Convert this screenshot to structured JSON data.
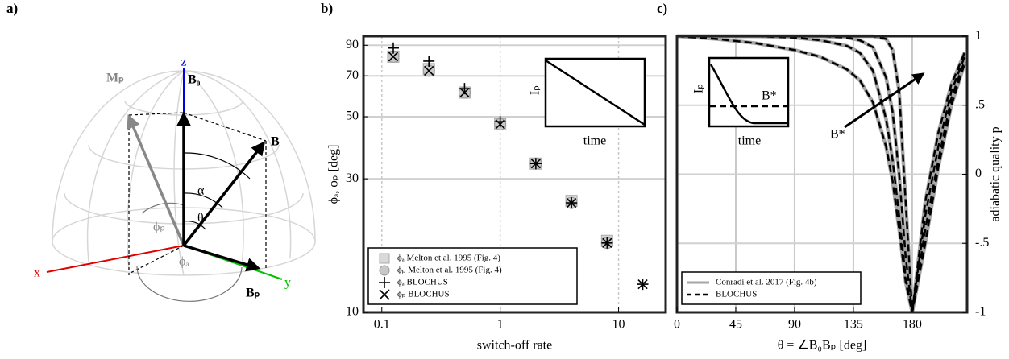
{
  "panel_labels": [
    "a)",
    "b)",
    "c)"
  ],
  "diagram": {
    "labels": {
      "z": "z",
      "x": "x",
      "y": "y",
      "B0": "B₀",
      "Mp": "Mₚ",
      "B": "B",
      "Bp": "Bₚ",
      "alpha": "α",
      "theta": "θ",
      "phip": "ϕₚ",
      "phia": "ϕₐ"
    }
  },
  "chart_data": [
    {
      "type": "scatter",
      "xlabel": "switch-off rate",
      "ylabel": "ϕₐ, ϕₚ [deg]",
      "xlog": true,
      "ylog": true,
      "grid": true,
      "legend": "lower left",
      "xlim": [
        0.07,
        25
      ],
      "xticks": [
        0.1,
        1,
        10
      ],
      "ylim": [
        10,
        97
      ],
      "yticks": [
        10,
        30,
        50,
        70,
        90
      ],
      "inset": {
        "ylabel": "Iₚ",
        "xlabel": "time"
      },
      "x": [
        0.125,
        0.25,
        0.5,
        1,
        2,
        4,
        8,
        16
      ],
      "series": [
        {
          "name": "ϕₐ Melton et al. 1995 (Fig. 4)",
          "marker": "square",
          "color": "#d9d9d9",
          "values": [
            82,
            74,
            61,
            47,
            34,
            25,
            18,
            null
          ]
        },
        {
          "name": "ϕₚ Melton et al. 1995 (Fig. 4)",
          "marker": "circle",
          "color": "#c8c8c8",
          "values": [
            82,
            73,
            61,
            47,
            34,
            24.6,
            17.7,
            null
          ]
        },
        {
          "name": "ϕₐ BLOCHUS",
          "marker": "plus",
          "color": "#000000",
          "values": [
            88,
            79,
            63,
            48,
            34,
            24.6,
            17.7,
            12.6
          ]
        },
        {
          "name": "ϕₚ BLOCHUS",
          "marker": "cross",
          "color": "#000000",
          "values": [
            82,
            73,
            61,
            47,
            34,
            24.6,
            17.7,
            12.6
          ]
        }
      ]
    },
    {
      "type": "line",
      "xlabel": "θ = ∠B₀Bₚ [deg]",
      "ylabel": "adiabatic quality p",
      "y_axis": "right",
      "grid": true,
      "legend": "lower left",
      "xlim": [
        0,
        222
      ],
      "xticks": [
        0,
        45,
        90,
        135,
        180
      ],
      "ylim": [
        -1,
        1
      ],
      "yticks": [
        -1,
        {
          "value": -0.5,
          "label": "-.5"
        },
        0,
        {
          "value": 0.5,
          "label": ".5"
        },
        1
      ],
      "inset": {
        "ylabel": "Iₚ",
        "xlabel": "time",
        "level": "B*"
      },
      "annotation": "B*",
      "x": [
        0,
        30,
        60,
        90,
        110,
        130,
        140,
        150,
        160,
        165,
        170,
        175,
        180,
        190,
        200,
        210,
        220
      ],
      "series": [
        {
          "name": "Conradi et al. 2017 (Fig. 4b)",
          "color": "#a6a6a6",
          "dash": false,
          "curves": [
            [
              1,
              0.98,
              0.95,
              0.9,
              0.85,
              0.76,
              0.68,
              0.52,
              0.2,
              -0.05,
              -0.4,
              -0.78,
              -1,
              -0.5,
              0.05,
              0.5,
              0.8
            ],
            [
              1,
              1,
              1,
              0.99,
              0.97,
              0.93,
              0.88,
              0.75,
              0.4,
              0.1,
              -0.3,
              -0.75,
              -1,
              -0.4,
              0.1,
              0.55,
              0.82
            ],
            [
              1,
              1,
              1,
              1,
              1,
              0.99,
              0.97,
              0.92,
              0.7,
              0.45,
              0,
              -0.6,
              -1,
              -0.3,
              0.2,
              0.6,
              0.85
            ],
            [
              1,
              1,
              1,
              1,
              1,
              1,
              1,
              1,
              0.98,
              0.9,
              0.6,
              -0.2,
              -1,
              -0.2,
              0.3,
              0.65,
              0.88
            ]
          ]
        },
        {
          "name": "BLOCHUS",
          "color": "#000000",
          "dash": true,
          "curves": [
            [
              1,
              0.98,
              0.95,
              0.9,
              0.85,
              0.76,
              0.68,
              0.52,
              0.2,
              -0.05,
              -0.4,
              -0.78,
              -1,
              -0.5,
              0.05,
              0.5,
              0.8
            ],
            [
              1,
              1,
              1,
              0.99,
              0.97,
              0.93,
              0.88,
              0.75,
              0.4,
              0.1,
              -0.3,
              -0.75,
              -1,
              -0.4,
              0.1,
              0.55,
              0.82
            ],
            [
              1,
              1,
              1,
              1,
              1,
              0.99,
              0.97,
              0.92,
              0.7,
              0.45,
              0,
              -0.6,
              -1,
              -0.3,
              0.2,
              0.6,
              0.85
            ],
            [
              1,
              1,
              1,
              1,
              1,
              1,
              1,
              1,
              0.98,
              0.9,
              0.6,
              -0.2,
              -1,
              -0.2,
              0.3,
              0.65,
              0.88
            ]
          ]
        }
      ]
    }
  ]
}
